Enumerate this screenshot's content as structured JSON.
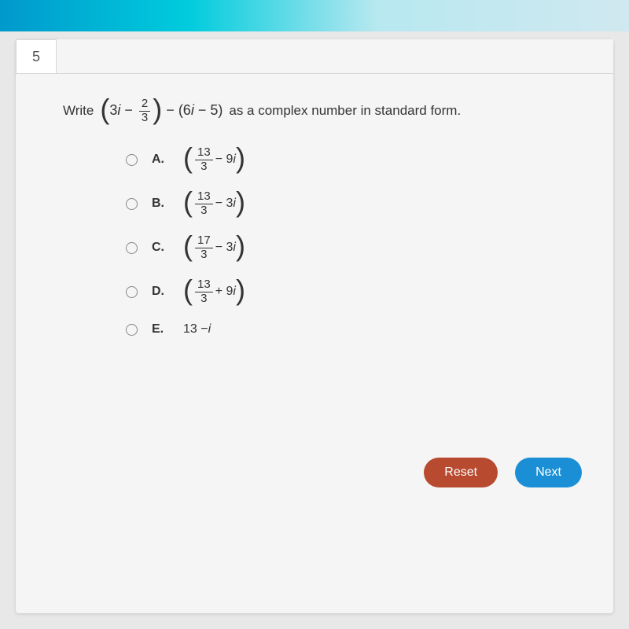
{
  "question_number": "5",
  "prompt_lead": "Write",
  "prompt_tail": "as a complex number in standard form.",
  "expr": {
    "first_term_coef": "3",
    "first_var": "i",
    "minus1": "−",
    "frac1_num": "2",
    "frac1_den": "3",
    "between": "−",
    "second_open": "(6",
    "second_var": "i",
    "second_rest": " − 5)"
  },
  "options": [
    {
      "label": "A.",
      "num": "13",
      "den": "3",
      "tail_sign": "− 9",
      "tail_var": "i",
      "paren": true
    },
    {
      "label": "B.",
      "num": "13",
      "den": "3",
      "tail_sign": "− 3",
      "tail_var": "i",
      "paren": true
    },
    {
      "label": "C.",
      "num": "17",
      "den": "3",
      "tail_sign": "− 3",
      "tail_var": "i",
      "paren": true
    },
    {
      "label": "D.",
      "num": "13",
      "den": "3",
      "tail_sign": "+ 9",
      "tail_var": "i",
      "paren": true
    },
    {
      "label": "E.",
      "plain_a": "13 − ",
      "plain_var": "i",
      "paren": false
    }
  ],
  "buttons": {
    "reset": "Reset",
    "next": "Next"
  },
  "colors": {
    "reset_bg": "#b84a2f",
    "next_bg": "#1b8fd6"
  }
}
